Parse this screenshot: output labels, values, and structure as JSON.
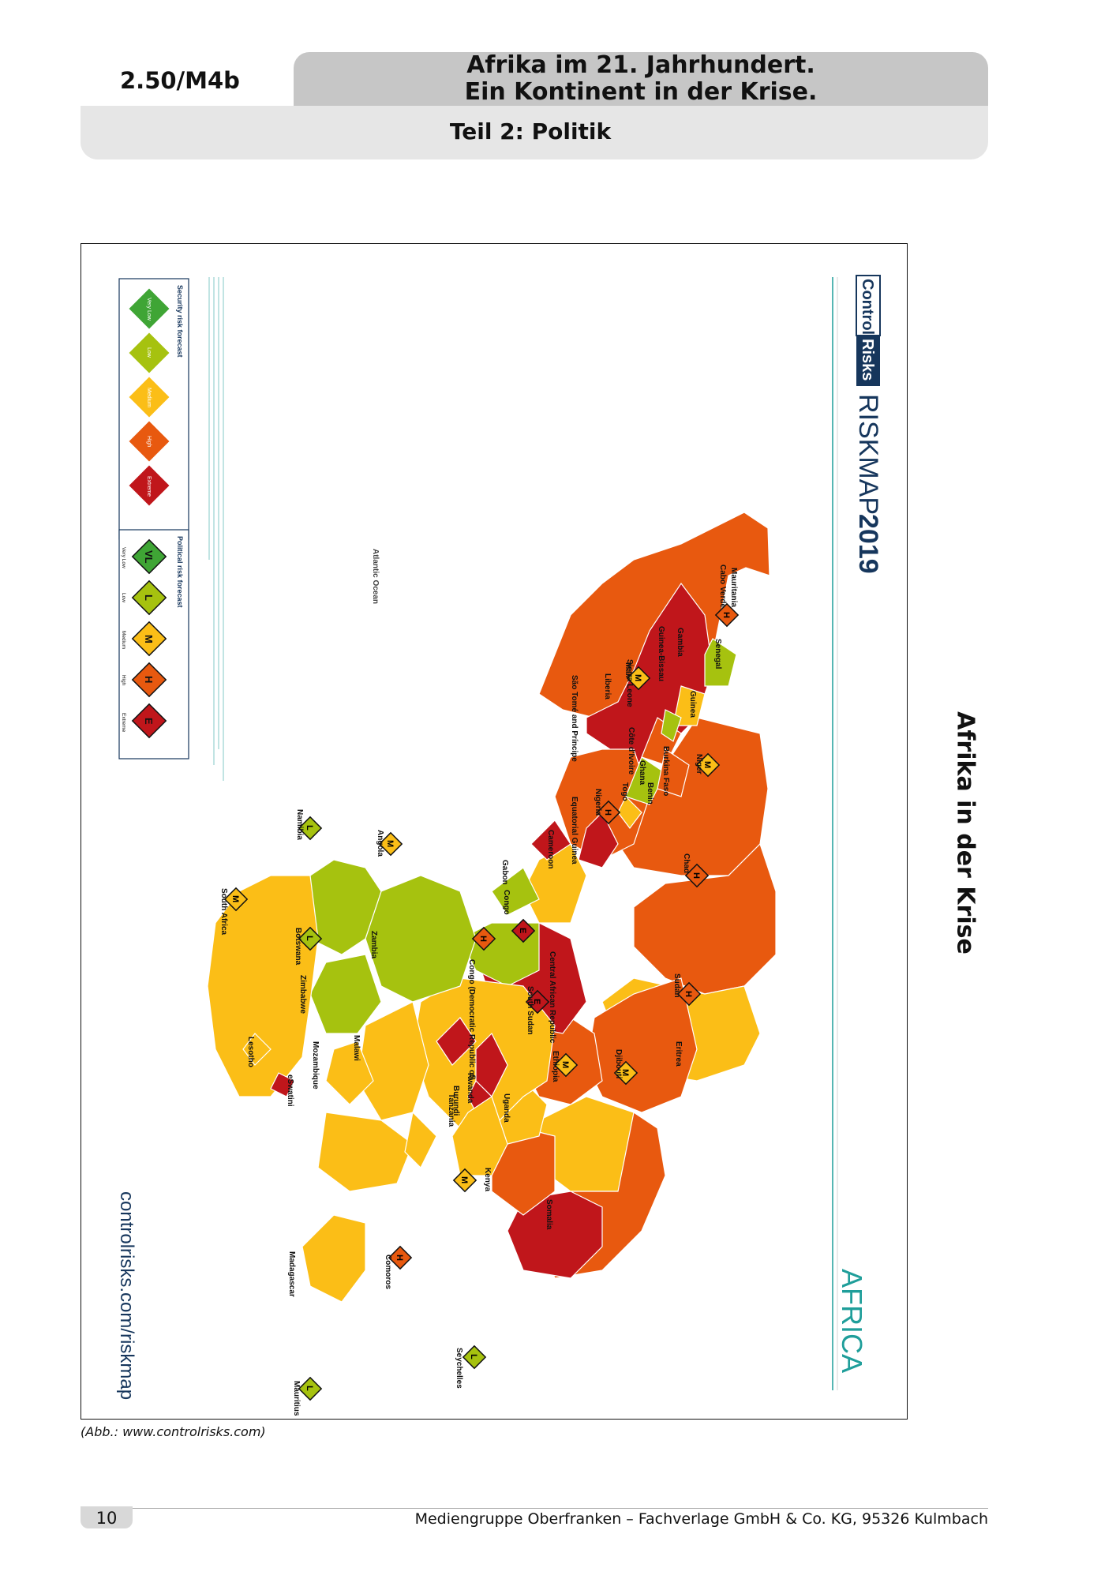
{
  "header": {
    "code": "2.50/M4b",
    "title_line1": "Afrika im 21. Jahrhundert.",
    "title_line2": "Ein Kontinent in der Krise.",
    "subtitle": "Teil 2: Politik"
  },
  "side_title": "Afrika in der Krise",
  "map": {
    "brand1": "Control",
    "brand2": "Risks",
    "product": "RISKMAP",
    "year": "2019",
    "region": "AFRICA",
    "url": "controlrisks.com/riskmap",
    "ocean": "Atlantic Ocean",
    "legend": {
      "security_title": "Security risk forecast",
      "security_levels": [
        "Very Low",
        "Low",
        "Medium",
        "High",
        "Extreme"
      ],
      "political_title": "Political risk forecast",
      "political_codes": [
        "VL",
        "L",
        "M",
        "H",
        "E"
      ],
      "political_levels": [
        "Very Low",
        "Low",
        "Medium",
        "High",
        "Extreme"
      ]
    },
    "countries": [
      {
        "name": "Mauritania",
        "rating": "H"
      },
      {
        "name": "Mali",
        "rating": "M"
      },
      {
        "name": "Niger",
        "rating": "M"
      },
      {
        "name": "Chad",
        "rating": "H"
      },
      {
        "name": "Sudan",
        "rating": "H"
      },
      {
        "name": "Eritrea",
        "rating": "H"
      },
      {
        "name": "Djibouti",
        "rating": "M"
      },
      {
        "name": "Ethiopia",
        "rating": "M"
      },
      {
        "name": "Somalia",
        "rating": "H"
      },
      {
        "name": "Kenya",
        "rating": "M"
      },
      {
        "name": "South Sudan",
        "rating": "E"
      },
      {
        "name": "Uganda",
        "rating": "M"
      },
      {
        "name": "Central African Republic",
        "rating": "E"
      },
      {
        "name": "Nigeria",
        "rating": "H"
      },
      {
        "name": "Cameroon",
        "rating": "M"
      },
      {
        "name": "Congo (Democratic Republic of)",
        "rating": "H"
      },
      {
        "name": "Congo",
        "rating": "M"
      },
      {
        "name": "Gabon",
        "rating": "M"
      },
      {
        "name": "Angola",
        "rating": "M"
      },
      {
        "name": "Namibia",
        "rating": "L"
      },
      {
        "name": "Botswana",
        "rating": "L"
      },
      {
        "name": "South Africa",
        "rating": "M"
      },
      {
        "name": "Zambia",
        "rating": "M"
      },
      {
        "name": "Zimbabwe",
        "rating": "H"
      },
      {
        "name": "Mozambique",
        "rating": "H"
      },
      {
        "name": "Malawi",
        "rating": "M"
      },
      {
        "name": "Tanzania",
        "rating": "M"
      },
      {
        "name": "Madagascar",
        "rating": "M"
      },
      {
        "name": "Comoros",
        "rating": "H"
      },
      {
        "name": "Mauritius",
        "rating": "L"
      },
      {
        "name": "Seychelles",
        "rating": "L"
      },
      {
        "name": "Senegal",
        "rating": "L"
      },
      {
        "name": "Gambia",
        "rating": "M"
      },
      {
        "name": "Guinea-Bissau",
        "rating": "H"
      },
      {
        "name": "Guinea",
        "rating": "M"
      },
      {
        "name": "Sierra Leone",
        "rating": "M"
      },
      {
        "name": "Liberia",
        "rating": "M"
      },
      {
        "name": "Côte d'Ivoire",
        "rating": "M"
      },
      {
        "name": "Burkina Faso",
        "rating": "M"
      },
      {
        "name": "Ghana",
        "rating": "M"
      },
      {
        "name": "Togo",
        "rating": "M"
      },
      {
        "name": "Benin",
        "rating": "M"
      },
      {
        "name": "Cabo Verde",
        "rating": "L"
      },
      {
        "name": "São Tomé and Príncipe",
        "rating": "L"
      },
      {
        "name": "Equatorial Guinea",
        "rating": "H"
      },
      {
        "name": "Rwanda",
        "rating": "M"
      },
      {
        "name": "Burundi",
        "rating": "H"
      },
      {
        "name": "Lesotho",
        "rating": "M"
      },
      {
        "name": "eSwatini",
        "rating": "M"
      }
    ]
  },
  "colors": {
    "very_low": "#3fa535",
    "low": "#a6c20f",
    "medium": "#fbbe17",
    "high": "#e8590f",
    "extreme": "#c0161b",
    "brand_teal": "#1f9e9a",
    "brand_navy": "#16365c"
  },
  "caption": "(Abb.: www.controlrisks.com)",
  "footer": {
    "page": "10",
    "publisher": "Mediengruppe Oberfranken – Fachverlage GmbH & Co. KG, 95326 Kulmbach"
  }
}
